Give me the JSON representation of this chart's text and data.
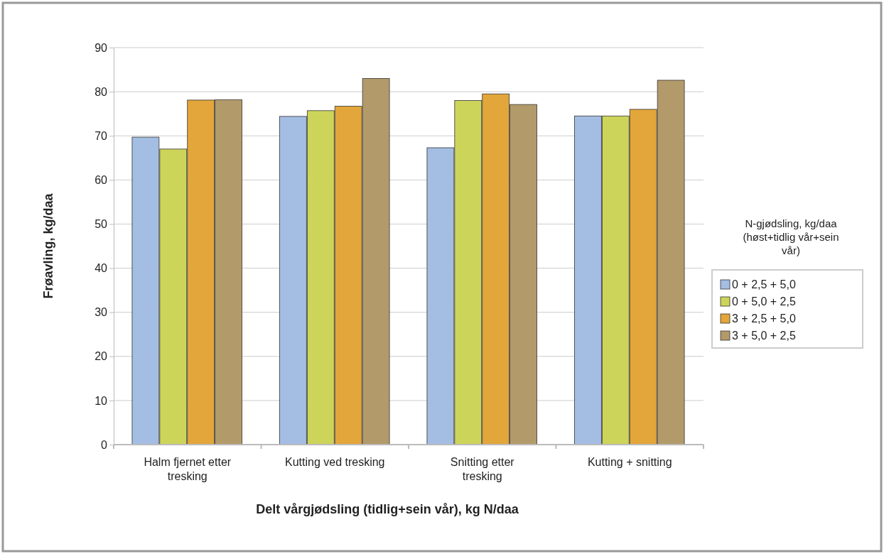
{
  "chart_data": {
    "type": "bar",
    "xlabel": "Delt vårgjødsling (tidlig+sein vår), kg N/daa",
    "ylabel": "Frøavling, kg/daa",
    "legend_title": "N-gjødsling, kg/daa (høst+tidlig vår+sein vår)",
    "categories": [
      "Halm fjernet etter tresking",
      "Kutting ved tresking",
      "Snitting etter tresking",
      "Kutting + snitting"
    ],
    "series": [
      {
        "name": "0 + 2,5 + 5,0",
        "color": "#a4bde3",
        "values": [
          69.7,
          74.4,
          67.3,
          74.5
        ]
      },
      {
        "name": "0 + 5,0 + 2,5",
        "color": "#cdd45a",
        "values": [
          67.0,
          75.7,
          78.0,
          74.5
        ]
      },
      {
        "name": "3 + 2,5 + 5,0",
        "color": "#e3a63a",
        "values": [
          78.1,
          76.7,
          79.5,
          76.0
        ]
      },
      {
        "name": "3 + 5,0 + 2,5",
        "color": "#b39a6a",
        "values": [
          78.2,
          83.0,
          77.1,
          82.6
        ]
      }
    ],
    "ylim": [
      0,
      90
    ],
    "yticks": [
      0,
      10,
      20,
      30,
      40,
      50,
      60,
      70,
      80,
      90
    ],
    "grid": "y",
    "legend": "right"
  }
}
